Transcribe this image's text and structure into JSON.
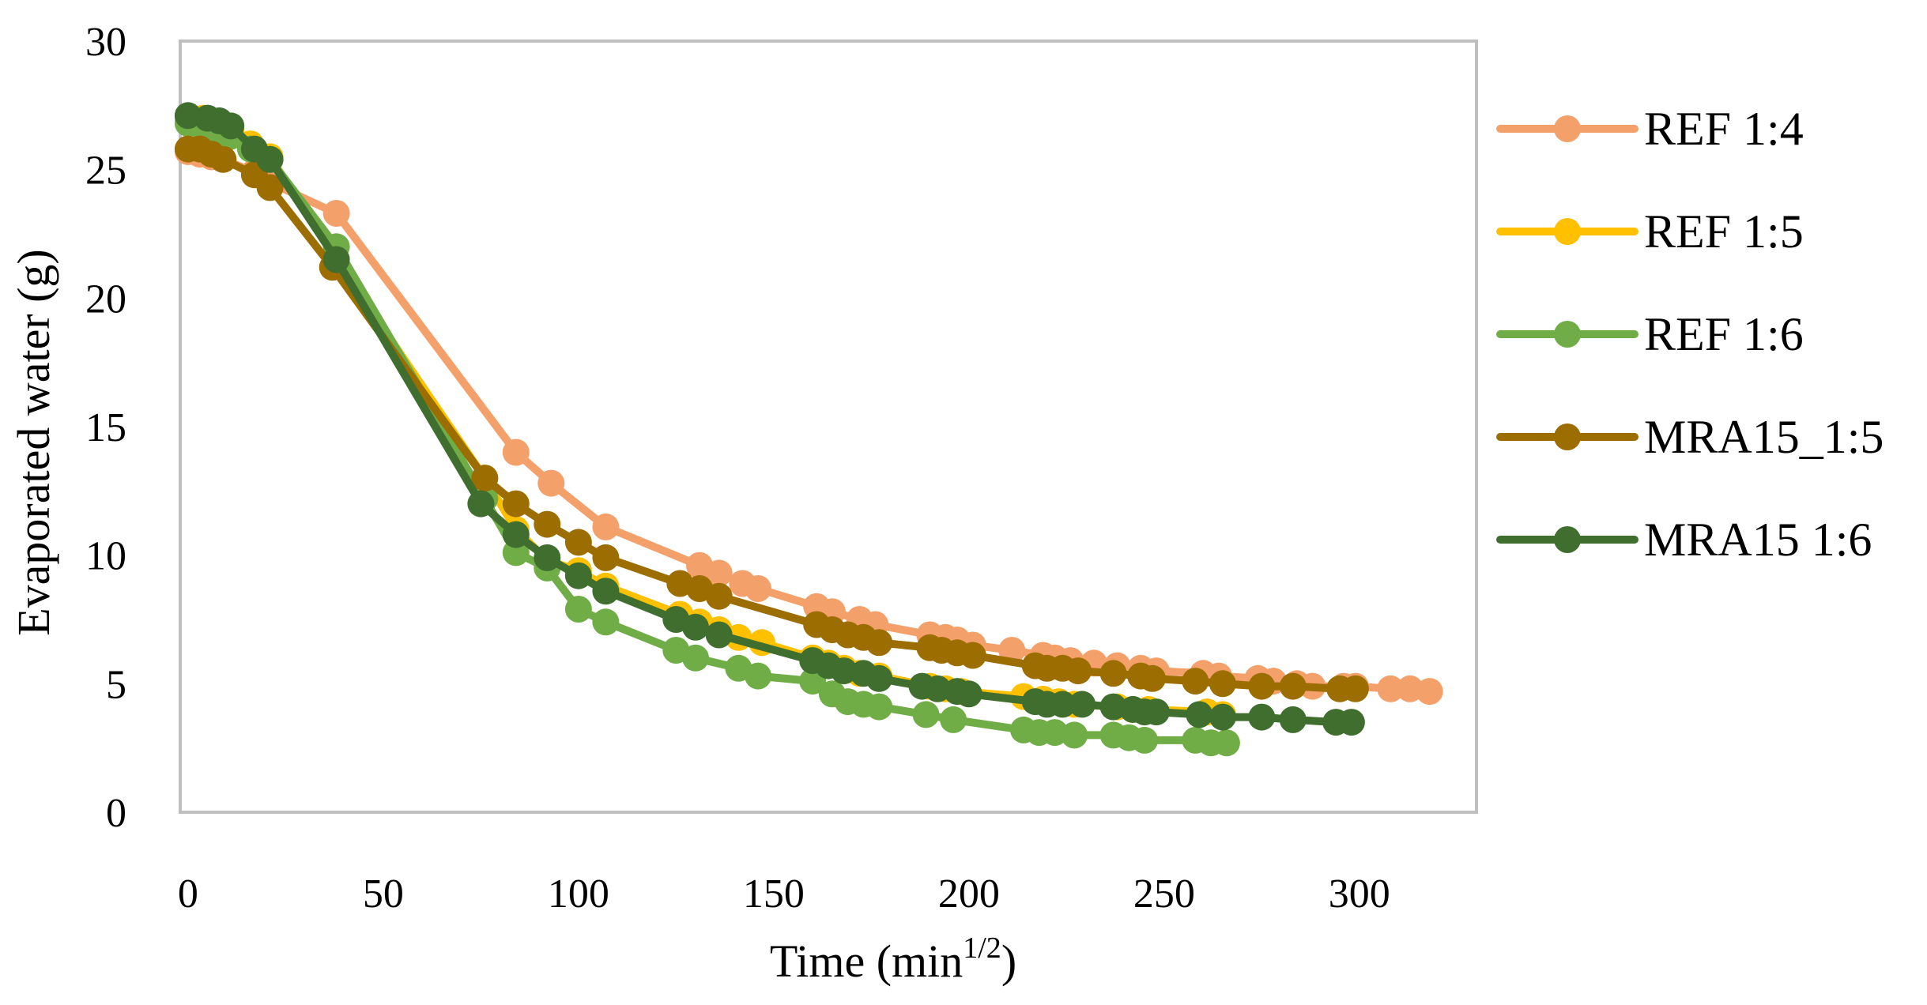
{
  "chart_data": {
    "type": "line",
    "title": "",
    "xlabel": "Time (min",
    "xlabel_superscript": "1/2",
    "xlabel_suffix": ")",
    "ylabel": "Evaporated water (g)",
    "xlim": [
      -2,
      330
    ],
    "ylim": [
      0,
      30
    ],
    "x_ticks": [
      "0",
      "50",
      "100",
      "150",
      "200",
      "250",
      "300"
    ],
    "y_ticks": [
      "0",
      "5",
      "10",
      "15",
      "20",
      "25",
      "30"
    ],
    "grid": false,
    "legend_position": "right",
    "series": [
      {
        "name": "REF 1:4",
        "color": "#F4A06A",
        "x": [
          0,
          3,
          6,
          9,
          17,
          21,
          38,
          84,
          93,
          107,
          131,
          136,
          142,
          146,
          161,
          165,
          172,
          176,
          190,
          194,
          197,
          201,
          211,
          219,
          222,
          226,
          232,
          238,
          244,
          248,
          260,
          264,
          274,
          278,
          284,
          288,
          296,
          299,
          308,
          313,
          318
        ],
        "y": [
          25.7,
          25.6,
          25.5,
          25.4,
          24.9,
          24.5,
          23.3,
          14.0,
          12.8,
          11.1,
          9.6,
          9.3,
          8.9,
          8.7,
          8.0,
          7.8,
          7.5,
          7.3,
          6.9,
          6.8,
          6.7,
          6.5,
          6.3,
          6.1,
          6.0,
          5.9,
          5.8,
          5.7,
          5.6,
          5.5,
          5.4,
          5.3,
          5.2,
          5.1,
          5.0,
          4.9,
          4.9,
          4.9,
          4.8,
          4.8,
          4.7
        ]
      },
      {
        "name": "REF 1:5",
        "color": "#FFC000",
        "x": [
          0,
          4,
          8,
          11,
          16,
          21,
          38,
          76,
          84,
          92,
          100,
          107,
          126,
          131,
          136,
          141,
          147,
          160,
          164,
          168,
          172,
          177,
          190,
          194,
          198,
          214,
          219,
          223,
          227,
          238,
          242,
          246,
          261,
          265
        ],
        "y": [
          27.0,
          27.0,
          26.8,
          26.6,
          26.0,
          25.5,
          21.5,
          13.0,
          11.0,
          9.8,
          9.4,
          8.8,
          7.7,
          7.4,
          7.1,
          6.8,
          6.6,
          6.0,
          5.8,
          5.6,
          5.4,
          5.3,
          4.9,
          4.8,
          4.7,
          4.5,
          4.4,
          4.3,
          4.2,
          4.1,
          4.0,
          4.0,
          3.9,
          3.8
        ]
      },
      {
        "name": "REF 1:6",
        "color": "#70AD47",
        "x": [
          0,
          4,
          7,
          11,
          16,
          21,
          38,
          76,
          84,
          92,
          100,
          107,
          125,
          130,
          141,
          146,
          160,
          165,
          169,
          173,
          177,
          189,
          196,
          214,
          218,
          222,
          227,
          237,
          241,
          245,
          258,
          262,
          266
        ],
        "y": [
          26.8,
          26.6,
          26.4,
          26.3,
          25.8,
          25.4,
          22.0,
          12.2,
          10.1,
          9.5,
          7.9,
          7.4,
          6.3,
          6.0,
          5.6,
          5.3,
          5.1,
          4.6,
          4.3,
          4.2,
          4.1,
          3.8,
          3.6,
          3.2,
          3.1,
          3.1,
          3.0,
          3.0,
          2.9,
          2.8,
          2.8,
          2.7,
          2.7
        ]
      },
      {
        "name": "MRA15_1:5",
        "color": "#9C6D00",
        "x": [
          0,
          3,
          6,
          9,
          17,
          21,
          37,
          76,
          84,
          92,
          100,
          107,
          126,
          131,
          136,
          161,
          165,
          169,
          173,
          177,
          190,
          193,
          197,
          201,
          217,
          220,
          224,
          228,
          237,
          244,
          247,
          258,
          265,
          275,
          283,
          295,
          299
        ],
        "y": [
          25.8,
          25.8,
          25.6,
          25.4,
          24.8,
          24.3,
          21.2,
          13.0,
          12.0,
          11.2,
          10.5,
          9.9,
          8.9,
          8.7,
          8.4,
          7.3,
          7.1,
          6.9,
          6.8,
          6.6,
          6.4,
          6.3,
          6.2,
          6.1,
          5.7,
          5.6,
          5.6,
          5.5,
          5.4,
          5.3,
          5.2,
          5.1,
          5.0,
          4.9,
          4.9,
          4.8,
          4.8
        ]
      },
      {
        "name": "MRA15 1:6",
        "color": "#3F6E2E",
        "x": [
          0,
          5,
          8,
          11,
          17,
          21,
          38,
          75,
          84,
          92,
          100,
          107,
          125,
          130,
          136,
          160,
          164,
          168,
          173,
          177,
          188,
          192,
          197,
          200,
          217,
          220,
          224,
          229,
          237,
          242,
          245,
          248,
          259,
          265,
          275,
          283,
          294,
          298
        ],
        "y": [
          27.1,
          27.0,
          26.9,
          26.7,
          25.8,
          25.4,
          21.5,
          12.0,
          10.8,
          9.9,
          9.2,
          8.6,
          7.5,
          7.2,
          6.9,
          5.9,
          5.7,
          5.5,
          5.4,
          5.2,
          4.9,
          4.8,
          4.7,
          4.6,
          4.3,
          4.2,
          4.2,
          4.2,
          4.1,
          4.0,
          3.9,
          3.9,
          3.8,
          3.7,
          3.7,
          3.6,
          3.5,
          3.5
        ]
      }
    ]
  }
}
